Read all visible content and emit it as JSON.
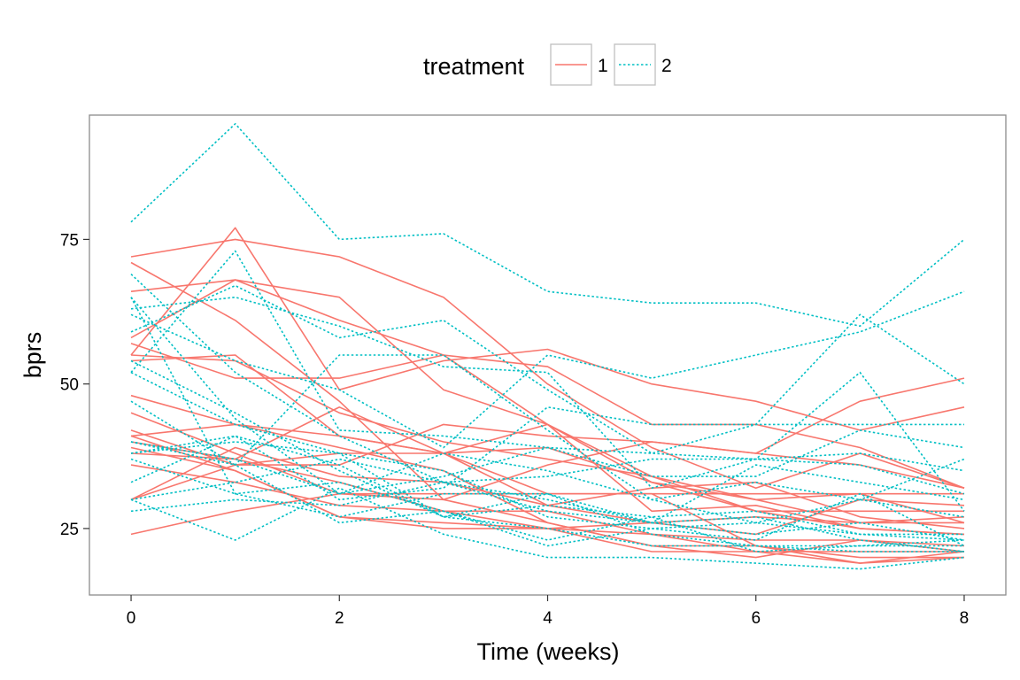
{
  "chart_data": {
    "type": "line",
    "xlabel": "Time (weeks)",
    "ylabel": "bprs",
    "x": [
      0,
      1,
      2,
      3,
      4,
      5,
      6,
      7,
      8
    ],
    "xticks": [
      "0",
      "2",
      "4",
      "6",
      "8"
    ],
    "yticks": [
      "25",
      "50",
      "75"
    ],
    "xlim": [
      -0.4,
      8.4
    ],
    "ylim": [
      13.5,
      96.5
    ],
    "grid": false,
    "legend": {
      "title": "treatment",
      "placement": "top",
      "items": [
        {
          "label": "1",
          "color": "#F8766D",
          "linetype": "solid"
        },
        {
          "label": "2",
          "color": "#00BFC4",
          "linetype": "dotted"
        }
      ]
    },
    "series": [
      {
        "group": "1",
        "values": [
          42,
          36,
          36,
          43,
          41,
          40,
          38,
          47,
          51
        ]
      },
      {
        "group": "1",
        "values": [
          58,
          68,
          61,
          55,
          43,
          34,
          28,
          28,
          28
        ]
      },
      {
        "group": "1",
        "values": [
          54,
          55,
          41,
          38,
          43,
          28,
          29,
          25,
          24
        ]
      },
      {
        "group": "1",
        "values": [
          55,
          77,
          49,
          54,
          56,
          50,
          47,
          42,
          46
        ]
      },
      {
        "group": "1",
        "values": [
          72,
          75,
          72,
          65,
          50,
          39,
          32,
          38,
          32
        ]
      },
      {
        "group": "1",
        "values": [
          48,
          43,
          41,
          38,
          29,
          32,
          33,
          27,
          25
        ]
      },
      {
        "group": "1",
        "values": [
          71,
          61,
          47,
          30,
          26,
          22,
          20,
          23,
          21
        ]
      },
      {
        "group": "1",
        "values": [
          30,
          36,
          38,
          38,
          31,
          31,
          22,
          19,
          21
        ]
      },
      {
        "group": "1",
        "values": [
          41,
          43,
          39,
          35,
          26,
          22,
          22,
          20,
          20
        ]
      },
      {
        "group": "1",
        "values": [
          57,
          51,
          51,
          55,
          53,
          43,
          43,
          39,
          32
        ]
      },
      {
        "group": "1",
        "values": [
          30,
          39,
          34,
          33,
          29,
          26,
          24,
          30,
          29
        ]
      },
      {
        "group": "1",
        "values": [
          55,
          54,
          45,
          40,
          37,
          34,
          30,
          31,
          26
        ]
      },
      {
        "group": "1",
        "values": [
          36,
          33,
          29,
          28,
          25,
          24,
          23,
          23,
          22
        ]
      },
      {
        "group": "1",
        "values": [
          38,
          37,
          33,
          28,
          28,
          24,
          21,
          21,
          21
        ]
      },
      {
        "group": "1",
        "values": [
          66,
          68,
          65,
          49,
          43,
          33,
          28,
          25,
          24
        ]
      },
      {
        "group": "1",
        "values": [
          41,
          35,
          27,
          26,
          25,
          21,
          21,
          19,
          20
        ]
      },
      {
        "group": "1",
        "values": [
          45,
          38,
          31,
          30,
          36,
          40,
          38,
          36,
          32
        ]
      },
      {
        "group": "1",
        "values": [
          39,
          35,
          27,
          25,
          25,
          26,
          27,
          26,
          27
        ]
      },
      {
        "group": "1",
        "values": [
          40,
          37,
          46,
          38,
          39,
          33,
          30,
          26,
          26
        ]
      },
      {
        "group": "1",
        "values": [
          24,
          28,
          31,
          31,
          31,
          31,
          31,
          31,
          31
        ]
      },
      {
        "group": "2",
        "values": [
          52,
          73,
          42,
          41,
          39,
          38,
          43,
          62,
          50
        ]
      },
      {
        "group": "2",
        "values": [
          30,
          23,
          32,
          24,
          20,
          20,
          19,
          18,
          20
        ]
      },
      {
        "group": "2",
        "values": [
          65,
          31,
          33,
          28,
          22,
          25,
          23,
          31,
          22
        ]
      },
      {
        "group": "2",
        "values": [
          37,
          31,
          27,
          31,
          31,
          26,
          24,
          26,
          23
        ]
      },
      {
        "group": "2",
        "values": [
          59,
          67,
          58,
          61,
          49,
          38,
          37,
          36,
          31
        ]
      },
      {
        "group": "2",
        "values": [
          30,
          33,
          37,
          33,
          28,
          26,
          27,
          23,
          21
        ]
      },
      {
        "group": "2",
        "values": [
          69,
          52,
          41,
          33,
          34,
          37,
          37,
          38,
          35
        ]
      },
      {
        "group": "2",
        "values": [
          62,
          54,
          49,
          39,
          55,
          51,
          55,
          59,
          66
        ]
      },
      {
        "group": "2",
        "values": [
          38,
          40,
          38,
          27,
          31,
          24,
          22,
          21,
          21
        ]
      },
      {
        "group": "2",
        "values": [
          65,
          44,
          31,
          34,
          39,
          34,
          34,
          42,
          39
        ]
      },
      {
        "group": "2",
        "values": [
          78,
          95,
          75,
          76,
          66,
          64,
          64,
          60,
          75
        ]
      },
      {
        "group": "2",
        "values": [
          38,
          41,
          36,
          27,
          29,
          27,
          21,
          22,
          23
        ]
      },
      {
        "group": "2",
        "values": [
          63,
          65,
          60,
          53,
          52,
          32,
          37,
          52,
          28
        ]
      },
      {
        "group": "2",
        "values": [
          40,
          37,
          31,
          38,
          35,
          30,
          33,
          30,
          27
        ]
      },
      {
        "group": "2",
        "values": [
          40,
          36,
          55,
          55,
          42,
          30,
          26,
          30,
          37
        ]
      },
      {
        "group": "2",
        "values": [
          54,
          45,
          35,
          27,
          25,
          22,
          22,
          22,
          22
        ]
      },
      {
        "group": "2",
        "values": [
          33,
          41,
          30,
          32,
          46,
          43,
          43,
          43,
          43
        ]
      },
      {
        "group": "2",
        "values": [
          28,
          30,
          29,
          33,
          30,
          26,
          36,
          33,
          30
        ]
      },
      {
        "group": "2",
        "values": [
          52,
          43,
          38,
          35,
          27,
          25,
          26,
          24,
          23
        ]
      },
      {
        "group": "2",
        "values": [
          47,
          36,
          26,
          28,
          23,
          27,
          28,
          24,
          24
        ]
      }
    ]
  }
}
